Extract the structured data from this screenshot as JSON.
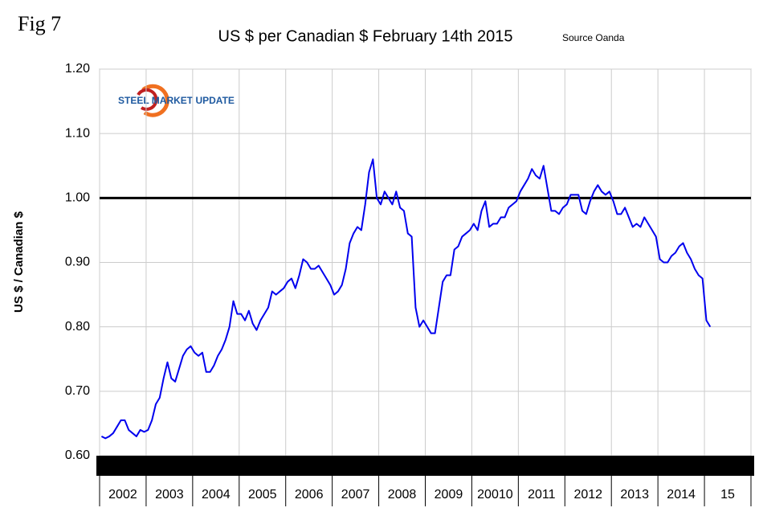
{
  "fig_label": "Fig 7",
  "logo_text": "STEEL MARKET UPDATE",
  "chart_data": {
    "type": "line",
    "title": "US $ per Canadian $  February 14th 2015",
    "subtitle": "Source Oanda",
    "y_label": "US $ / Canadian $",
    "categories": [
      "2002",
      "2003",
      "2004",
      "2005",
      "2006",
      "2007",
      "2008",
      "2009",
      "20010",
      "2011",
      "2012",
      "2013",
      "2014",
      "15"
    ],
    "values": [
      [
        0.63,
        0.627,
        0.63,
        0.635,
        0.645,
        0.655,
        0.655,
        0.64,
        0.635,
        0.63,
        0.64,
        0.637
      ],
      [
        0.64,
        0.655,
        0.68,
        0.69,
        0.72,
        0.745,
        0.72,
        0.715,
        0.735,
        0.755,
        0.765,
        0.77
      ],
      [
        0.76,
        0.755,
        0.76,
        0.73,
        0.73,
        0.74,
        0.755,
        0.765,
        0.78,
        0.8,
        0.84,
        0.82
      ],
      [
        0.82,
        0.81,
        0.825,
        0.805,
        0.795,
        0.81,
        0.82,
        0.83,
        0.855,
        0.85,
        0.855,
        0.86
      ],
      [
        0.87,
        0.875,
        0.86,
        0.88,
        0.905,
        0.9,
        0.89,
        0.89,
        0.895,
        0.885,
        0.875,
        0.865
      ],
      [
        0.85,
        0.855,
        0.865,
        0.89,
        0.93,
        0.945,
        0.955,
        0.95,
        0.99,
        1.04,
        1.06,
        1.0
      ],
      [
        0.99,
        1.01,
        1.0,
        0.99,
        1.01,
        0.985,
        0.98,
        0.945,
        0.94,
        0.83,
        0.8,
        0.81
      ],
      [
        0.8,
        0.79,
        0.79,
        0.83,
        0.87,
        0.88,
        0.88,
        0.92,
        0.925,
        0.94,
        0.945,
        0.95
      ],
      [
        0.96,
        0.95,
        0.98,
        0.995,
        0.955,
        0.96,
        0.96,
        0.97,
        0.97,
        0.985,
        0.99,
        0.995
      ],
      [
        1.01,
        1.02,
        1.03,
        1.045,
        1.035,
        1.03,
        1.05,
        1.015,
        0.98,
        0.98,
        0.975,
        0.985
      ],
      [
        0.99,
        1.005,
        1.005,
        1.005,
        0.98,
        0.975,
        0.995,
        1.01,
        1.02,
        1.01,
        1.005,
        1.01
      ],
      [
        0.995,
        0.975,
        0.975,
        0.985,
        0.97,
        0.955,
        0.96,
        0.955,
        0.97,
        0.96,
        0.95,
        0.94
      ],
      [
        0.905,
        0.9,
        0.9,
        0.91,
        0.915,
        0.925,
        0.93,
        0.915,
        0.905,
        0.89,
        0.88,
        0.875
      ],
      [
        0.81,
        0.8
      ]
    ],
    "color": "#0000ee",
    "reference_line": 1.0,
    "ylim": [
      0.6,
      1.2
    ],
    "yticks": [
      {
        "value": 0.6,
        "label": "0.60"
      },
      {
        "value": 0.7,
        "label": "0.70"
      },
      {
        "value": 0.8,
        "label": "0.80"
      },
      {
        "value": 0.9,
        "label": "0.90"
      },
      {
        "value": 1.0,
        "label": "1.00"
      },
      {
        "value": 1.1,
        "label": "1.10"
      },
      {
        "value": 1.2,
        "label": "1.20"
      }
    ],
    "grid": true
  }
}
